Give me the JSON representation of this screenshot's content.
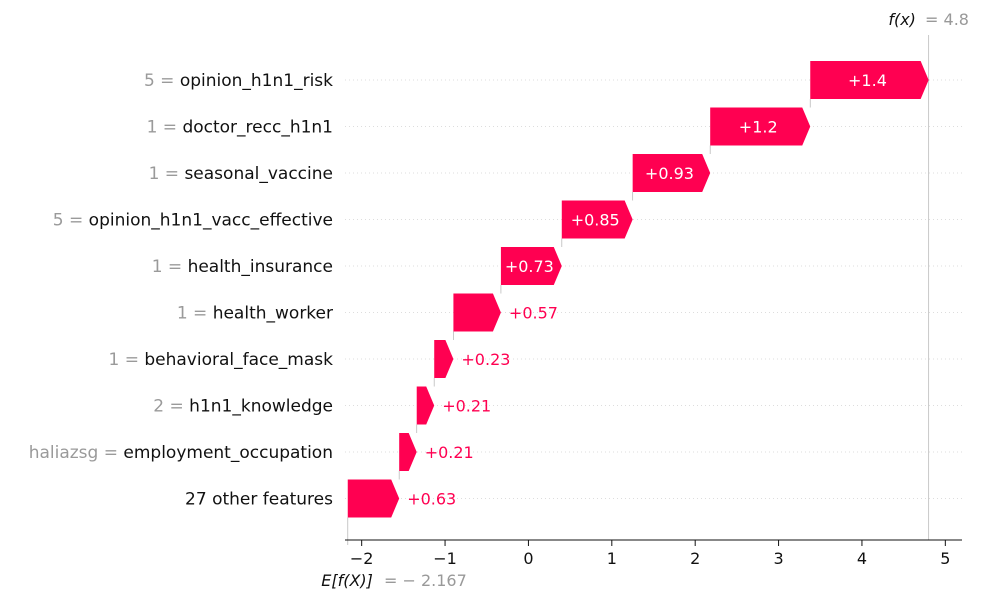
{
  "chart_data": {
    "type": "waterfall",
    "xlim": [
      -2.2,
      5.2
    ],
    "xticks": [
      -2,
      -1,
      0,
      1,
      2,
      3,
      4,
      5
    ],
    "xtick_labels": [
      "−2",
      "−1",
      "0",
      "1",
      "2",
      "3",
      "4",
      "5"
    ],
    "base_value": -2.167,
    "base_label_prefix": "E[f(X)]",
    "base_label_value": "= − 2.167",
    "fx_value": 4.8,
    "fx_label_prefix": "f(x)",
    "fx_label_value": "= 4.8",
    "color_positive": "#ff0051",
    "features": [
      {
        "value": "5",
        "name": "opinion_h1n1_risk",
        "contribution": 1.4,
        "start": 3.38,
        "end": 4.8,
        "label": "+1.4"
      },
      {
        "value": "1",
        "name": "doctor_recc_h1n1",
        "contribution": 1.2,
        "start": 2.18,
        "end": 3.38,
        "label": "+1.2"
      },
      {
        "value": "1",
        "name": "seasonal_vaccine",
        "contribution": 0.93,
        "start": 1.25,
        "end": 2.18,
        "label": "+0.93"
      },
      {
        "value": "5",
        "name": "opinion_h1n1_vacc_effective",
        "contribution": 0.85,
        "start": 0.4,
        "end": 1.25,
        "label": "+0.85"
      },
      {
        "value": "1",
        "name": "health_insurance",
        "contribution": 0.73,
        "start": -0.33,
        "end": 0.4,
        "label": "+0.73"
      },
      {
        "value": "1",
        "name": "health_worker",
        "contribution": 0.57,
        "start": -0.9,
        "end": -0.33,
        "label": "+0.57"
      },
      {
        "value": "1",
        "name": "behavioral_face_mask",
        "contribution": 0.23,
        "start": -1.13,
        "end": -0.9,
        "label": "+0.23"
      },
      {
        "value": "2",
        "name": "h1n1_knowledge",
        "contribution": 0.21,
        "start": -1.34,
        "end": -1.13,
        "label": "+0.21"
      },
      {
        "value": "haliazsg",
        "name": "employment_occupation",
        "contribution": 0.21,
        "start": -1.55,
        "end": -1.34,
        "label": "+0.21"
      },
      {
        "value": "",
        "name": "27 other features",
        "contribution": 0.63,
        "start": -2.167,
        "end": -1.55,
        "label": "+0.63"
      }
    ]
  }
}
